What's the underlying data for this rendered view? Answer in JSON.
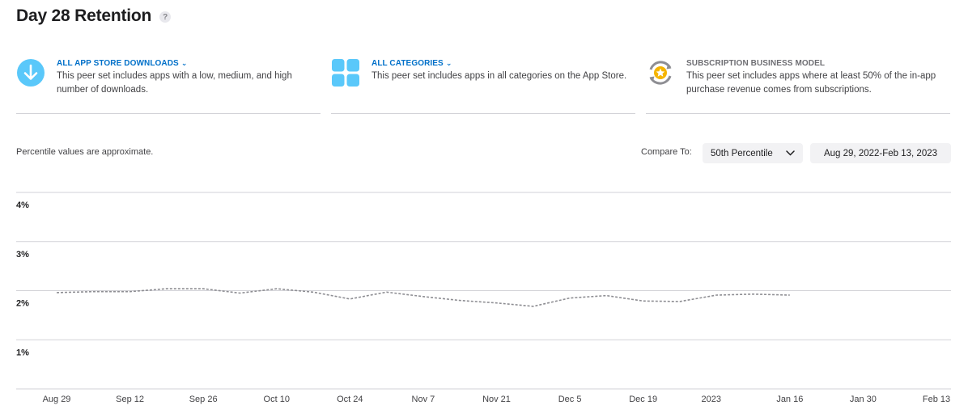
{
  "page": {
    "title": "Day 28 Retention",
    "help": "?"
  },
  "peer_sets": [
    {
      "title": "ALL APP STORE DOWNLOADS",
      "has_dropdown": true,
      "icon": "download-arrow-icon",
      "description": "This peer set includes apps with a low, medium, and high number of downloads."
    },
    {
      "title": "ALL CATEGORIES",
      "has_dropdown": true,
      "icon": "categories-grid-icon",
      "description": "This peer set includes apps in all categories on the App Store."
    },
    {
      "title": "SUBSCRIPTION BUSINESS MODEL",
      "has_dropdown": false,
      "icon": "subscription-star-icon",
      "description": "This peer set includes apps where at least 50% of the in-app purchase revenue comes from subscriptions."
    }
  ],
  "controls": {
    "note": "Percentile values are approximate.",
    "compare_label": "Compare To:",
    "percentile": "50th Percentile",
    "date_range": "Aug 29, 2022-Feb 13, 2023"
  },
  "colors": {
    "accent": "#0070c9",
    "icon_blue": "#5ac8fa",
    "line": "#8e8e93",
    "grid": "#d2d2d7",
    "star": "#f5b400"
  },
  "chart_data": {
    "type": "line",
    "y_unit": "%",
    "ylim": [
      0,
      4
    ],
    "y_ticks": [
      {
        "value": 4,
        "label": "4%"
      },
      {
        "value": 3,
        "label": "3%"
      },
      {
        "value": 2,
        "label": "2%"
      },
      {
        "value": 1,
        "label": "1%"
      }
    ],
    "xlim": [
      "2022-08-29",
      "2023-02-13"
    ],
    "x_ticks": [
      {
        "date": "2022-08-29",
        "label": "Aug 29"
      },
      {
        "date": "2022-09-12",
        "label": "Sep 12"
      },
      {
        "date": "2022-09-26",
        "label": "Sep 26"
      },
      {
        "date": "2022-10-10",
        "label": "Oct 10"
      },
      {
        "date": "2022-10-24",
        "label": "Oct 24"
      },
      {
        "date": "2022-11-07",
        "label": "Nov 7"
      },
      {
        "date": "2022-11-21",
        "label": "Nov 21"
      },
      {
        "date": "2022-12-05",
        "label": "Dec 5"
      },
      {
        "date": "2022-12-19",
        "label": "Dec 19"
      },
      {
        "date": "2023-01-01",
        "label": "2023"
      },
      {
        "date": "2023-01-16",
        "label": "Jan 16"
      },
      {
        "date": "2023-01-30",
        "label": "Jan 30"
      },
      {
        "date": "2023-02-13",
        "label": "Feb 13"
      }
    ],
    "grid": true,
    "series": [
      {
        "style": "dashed",
        "points": [
          {
            "x": "2022-08-29",
            "y": 1.96
          },
          {
            "x": "2022-09-05",
            "y": 1.98
          },
          {
            "x": "2022-09-12",
            "y": 1.98
          },
          {
            "x": "2022-09-19",
            "y": 2.04
          },
          {
            "x": "2022-09-26",
            "y": 2.04
          },
          {
            "x": "2022-10-03",
            "y": 1.95
          },
          {
            "x": "2022-10-10",
            "y": 2.04
          },
          {
            "x": "2022-10-17",
            "y": 1.97
          },
          {
            "x": "2022-10-24",
            "y": 1.83
          },
          {
            "x": "2022-10-31",
            "y": 1.97
          },
          {
            "x": "2022-11-07",
            "y": 1.88
          },
          {
            "x": "2022-11-14",
            "y": 1.8
          },
          {
            "x": "2022-11-21",
            "y": 1.75
          },
          {
            "x": "2022-11-28",
            "y": 1.68
          },
          {
            "x": "2022-12-05",
            "y": 1.85
          },
          {
            "x": "2022-12-12",
            "y": 1.9
          },
          {
            "x": "2022-12-19",
            "y": 1.79
          },
          {
            "x": "2022-12-26",
            "y": 1.78
          },
          {
            "x": "2023-01-02",
            "y": 1.91
          },
          {
            "x": "2023-01-09",
            "y": 1.93
          },
          {
            "x": "2023-01-16",
            "y": 1.91
          }
        ]
      }
    ]
  }
}
